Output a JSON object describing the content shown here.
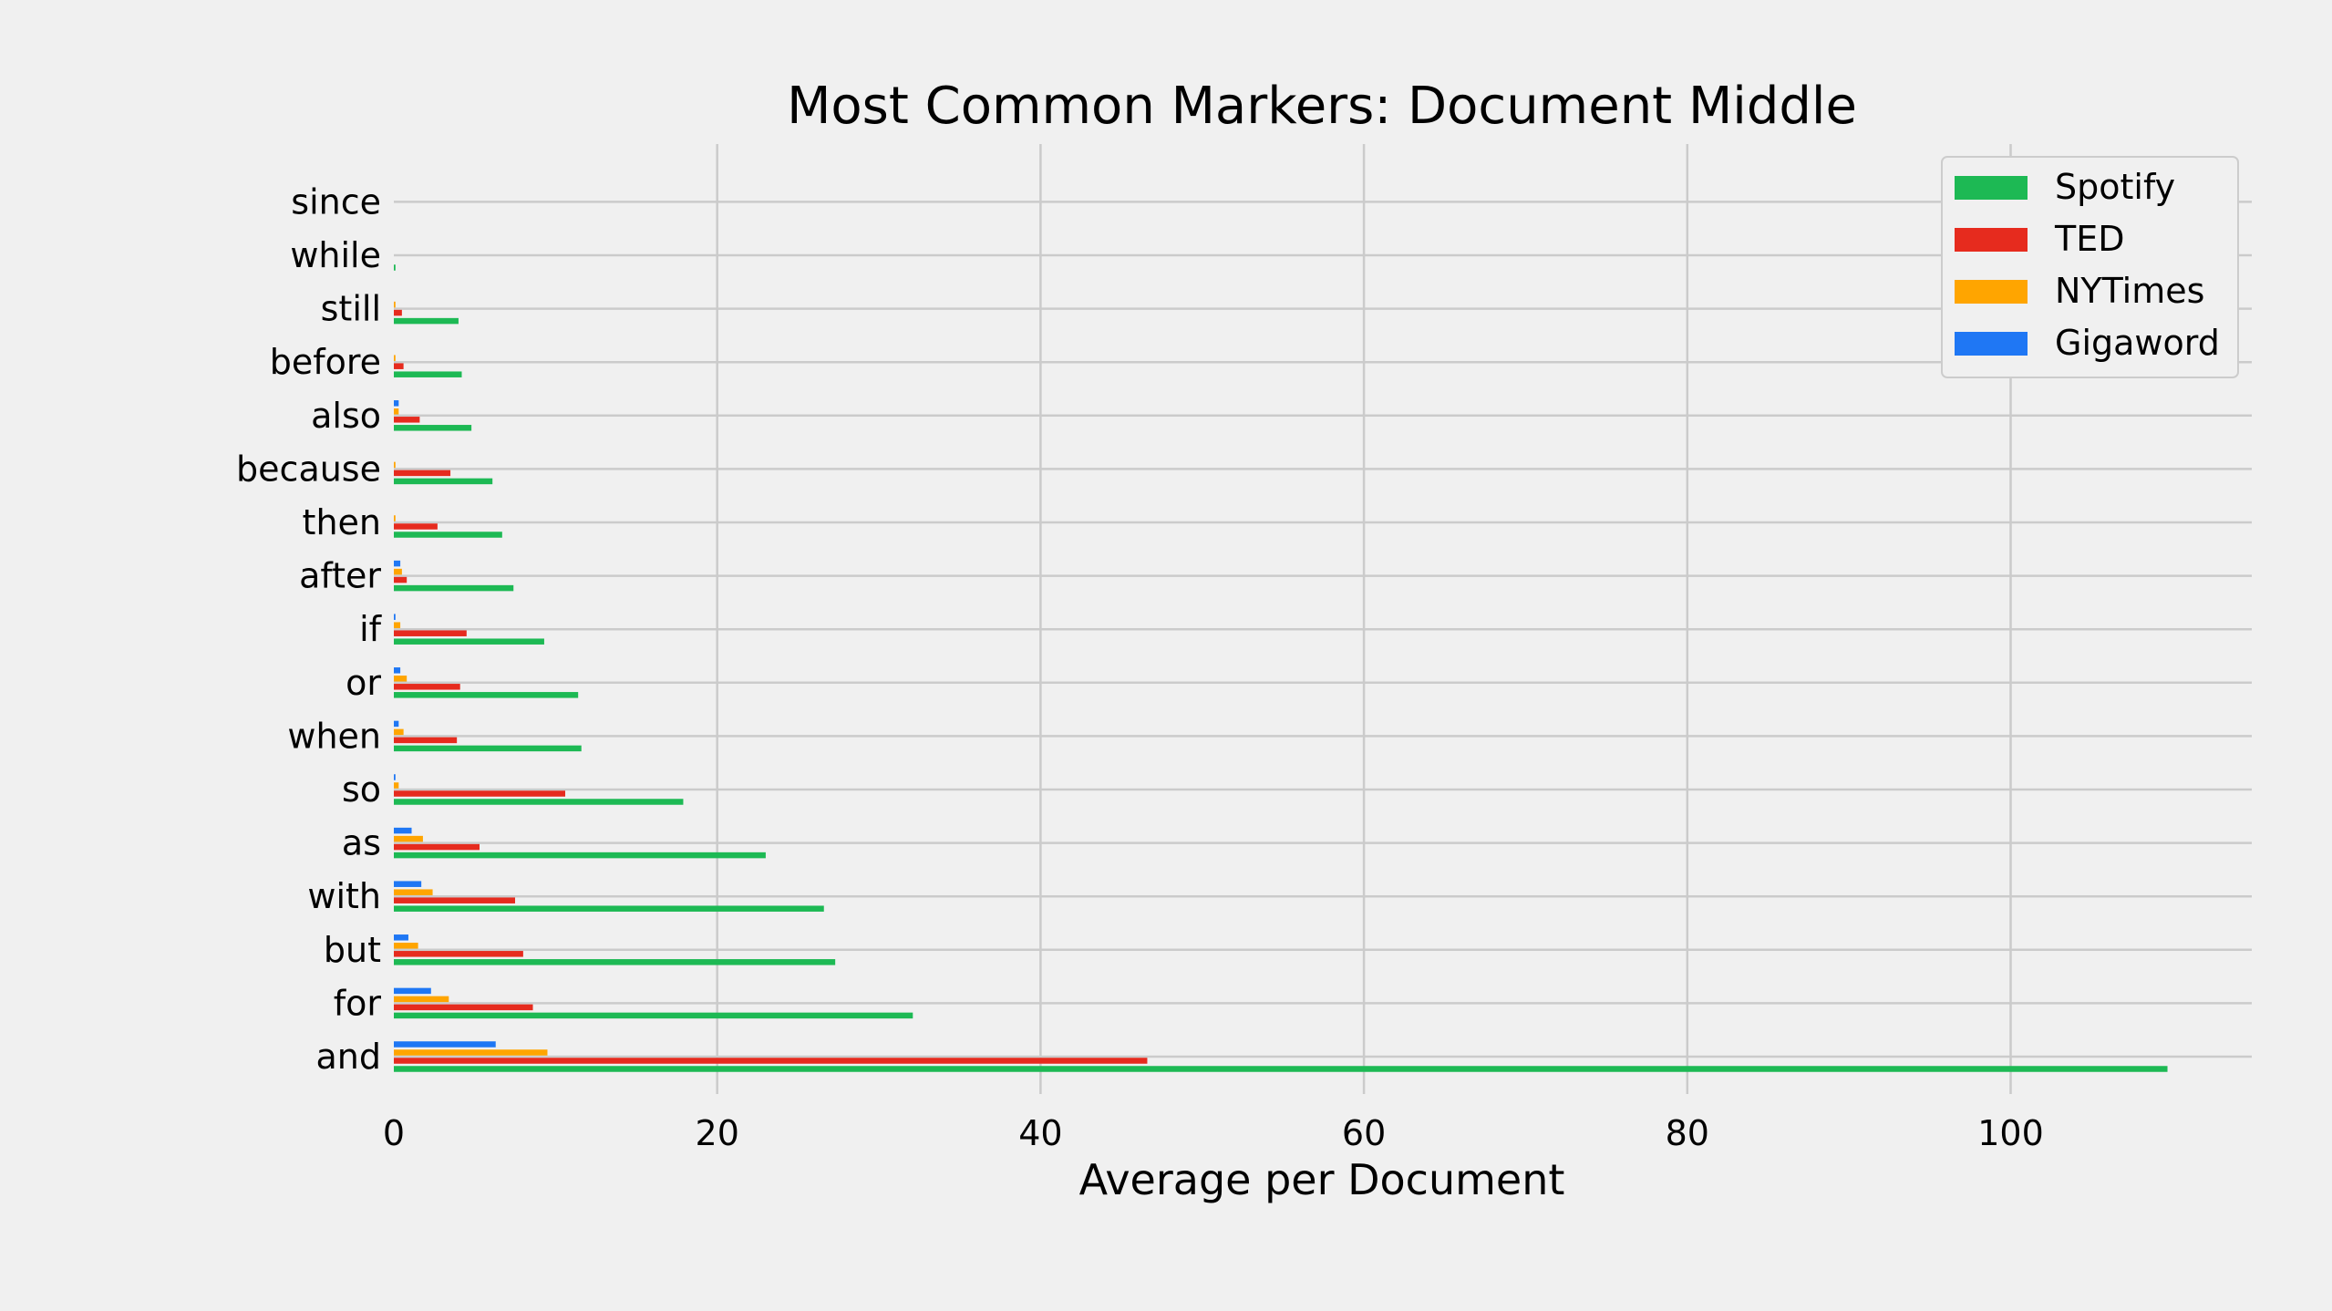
{
  "chart_data": {
    "type": "bar",
    "orientation": "horizontal",
    "title": "Most Common Markers: Document Middle",
    "xlabel": "Average per Document",
    "ylabel": "",
    "xlim": [
      0,
      115
    ],
    "xticks": [
      0,
      20,
      40,
      60,
      80,
      100
    ],
    "grid": true,
    "legend_position": "top-right",
    "categories": [
      "and",
      "for",
      "but",
      "with",
      "as",
      "so",
      "when",
      "or",
      "if",
      "after",
      "then",
      "because",
      "also",
      "before",
      "still",
      "while",
      "since"
    ],
    "series": [
      {
        "name": "Spotify",
        "color": "#1db954",
        "values": [
          109.7,
          32.1,
          27.3,
          26.6,
          23.0,
          17.9,
          11.6,
          11.4,
          9.3,
          7.4,
          6.7,
          6.1,
          4.8,
          4.2,
          4.0,
          0.1,
          0.0
        ]
      },
      {
        "name": "TED",
        "color": "#e62b1e",
        "values": [
          46.6,
          8.6,
          8.0,
          7.5,
          5.3,
          10.6,
          3.9,
          4.1,
          4.5,
          0.8,
          2.7,
          3.5,
          1.6,
          0.6,
          0.5,
          0.0,
          0.0
        ]
      },
      {
        "name": "NYTimes",
        "color": "#ffa500",
        "values": [
          9.5,
          3.4,
          1.5,
          2.4,
          1.8,
          0.3,
          0.6,
          0.8,
          0.4,
          0.5,
          0.1,
          0.1,
          0.3,
          0.1,
          0.1,
          0.0,
          0.0
        ]
      },
      {
        "name": "Gigaword",
        "color": "#1f77f4",
        "values": [
          6.3,
          2.3,
          0.9,
          1.7,
          1.1,
          0.1,
          0.3,
          0.4,
          0.1,
          0.4,
          0.0,
          0.0,
          0.3,
          0.0,
          0.0,
          0.0,
          0.0
        ]
      }
    ]
  }
}
